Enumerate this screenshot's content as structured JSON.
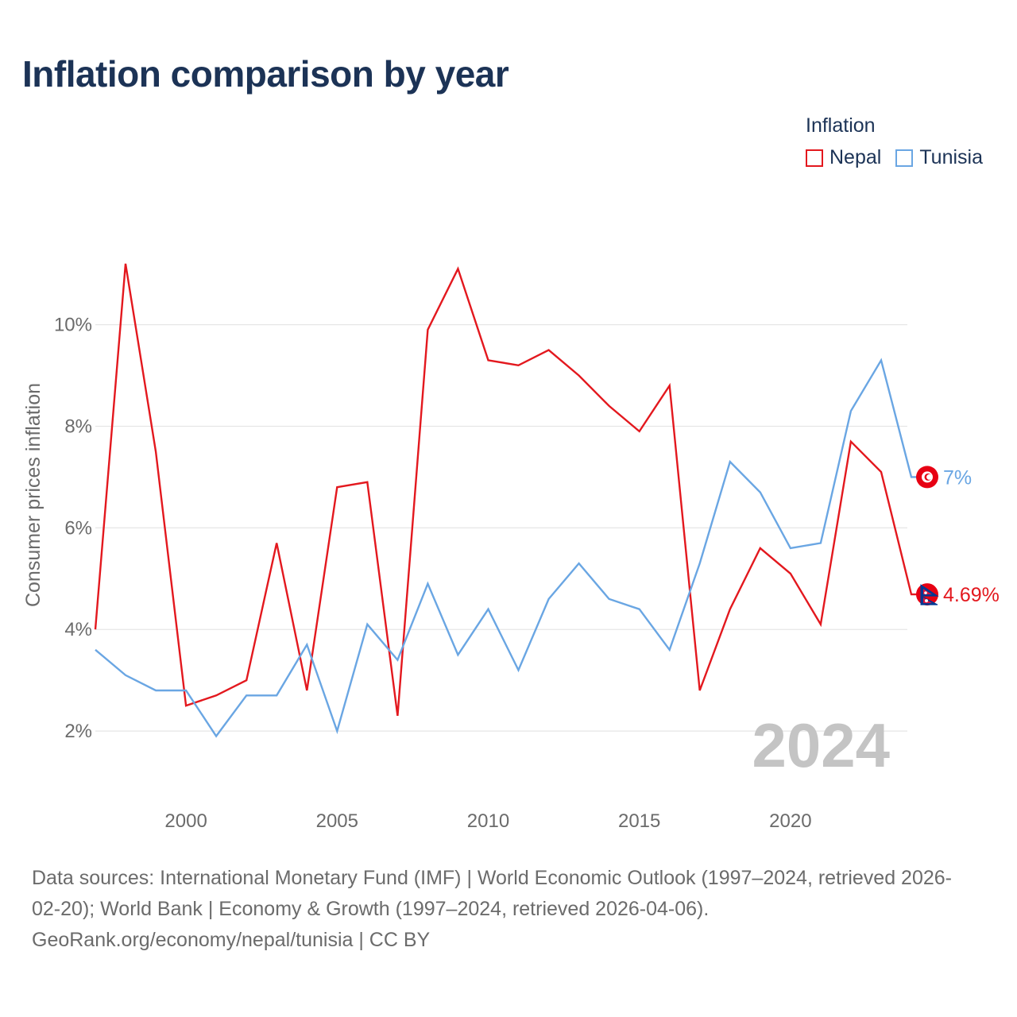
{
  "title": "Inflation comparison by year",
  "legend": {
    "title": "Inflation",
    "items": [
      {
        "name": "Nepal",
        "color": "#e3181e"
      },
      {
        "name": "Tunisia",
        "color": "#6aa6e3"
      }
    ]
  },
  "chart_data": {
    "type": "line",
    "title": "Inflation comparison by year",
    "ylabel": "Consumer prices inflation",
    "xlabel": "",
    "x": [
      1997,
      1998,
      1999,
      2000,
      2001,
      2002,
      2003,
      2004,
      2005,
      2006,
      2007,
      2008,
      2009,
      2010,
      2011,
      2012,
      2013,
      2014,
      2015,
      2016,
      2017,
      2018,
      2019,
      2020,
      2021,
      2022,
      2023,
      2024
    ],
    "xticks": [
      2000,
      2005,
      2010,
      2015,
      2020
    ],
    "yticks": [
      2,
      4,
      6,
      8,
      10
    ],
    "ytick_labels": [
      "2%",
      "4%",
      "6%",
      "8%",
      "10%"
    ],
    "xlim": [
      1997,
      2024
    ],
    "ylim": [
      0.5,
      12.7
    ],
    "grid": true,
    "watermark_year": "2024",
    "series": [
      {
        "name": "Nepal",
        "color": "#e3181e",
        "values": [
          4.0,
          11.2,
          7.5,
          2.5,
          2.7,
          3.0,
          5.7,
          2.8,
          6.8,
          6.9,
          2.3,
          9.9,
          11.1,
          9.3,
          9.2,
          9.5,
          9.0,
          8.4,
          7.9,
          8.8,
          2.8,
          4.4,
          5.6,
          5.1,
          4.1,
          7.7,
          7.1,
          4.69
        ],
        "end_label": "4.69%"
      },
      {
        "name": "Tunisia",
        "color": "#6aa6e3",
        "values": [
          3.6,
          3.1,
          2.8,
          2.8,
          1.9,
          2.7,
          2.7,
          3.7,
          2.0,
          4.1,
          3.4,
          4.9,
          3.5,
          4.4,
          3.2,
          4.6,
          5.3,
          4.6,
          4.4,
          3.6,
          5.3,
          7.3,
          6.7,
          5.6,
          5.7,
          8.3,
          9.3,
          7.0
        ],
        "end_label": "7%"
      }
    ]
  },
  "footer": {
    "line1": "Data sources: International Monetary Fund (IMF) | World Economic Outlook (1997–2024, retrieved 2026-",
    "line2": "02-20); World Bank | Economy & Growth (1997–2024, retrieved 2026-04-06).",
    "line3": "GeoRank.org/economy/nepal/tunisia | CC BY"
  }
}
